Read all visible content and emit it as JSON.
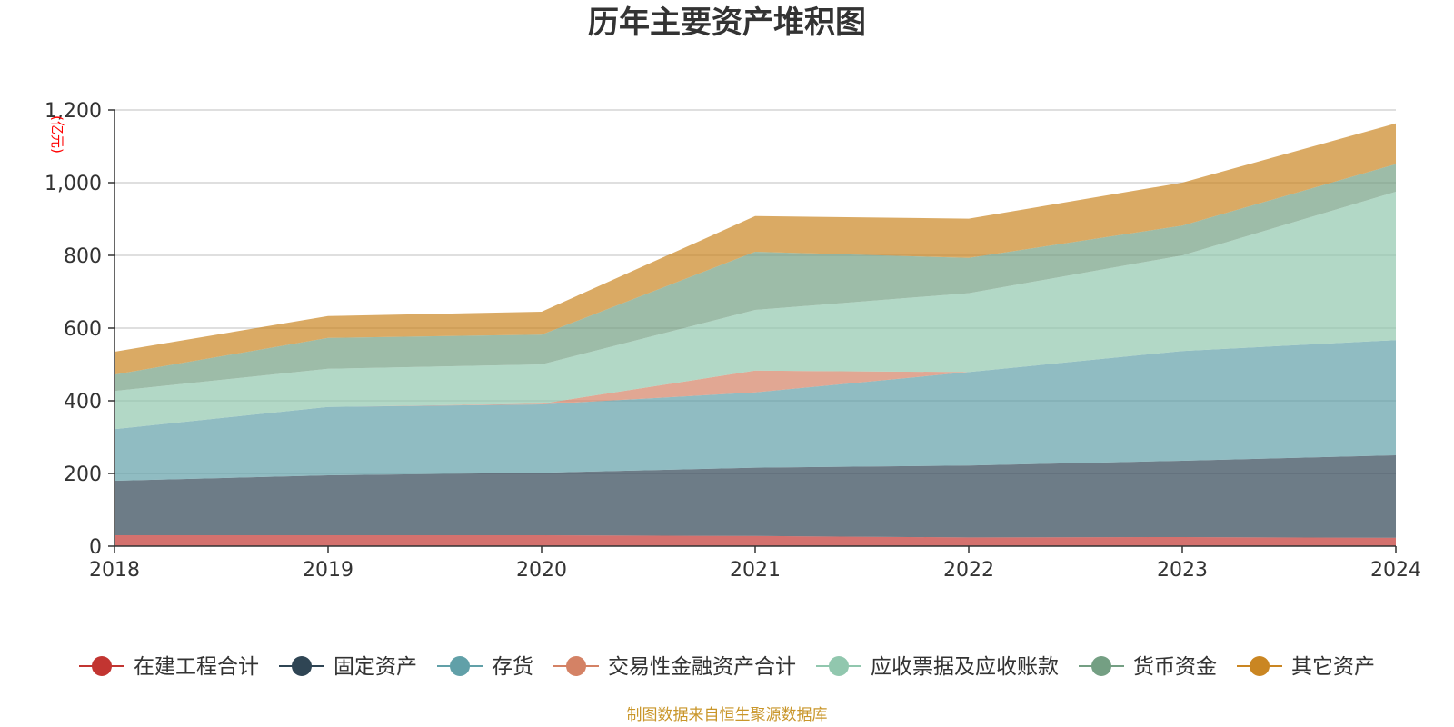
{
  "chart_data": {
    "type": "area",
    "stacked": true,
    "title": "历年主要资产堆积图",
    "unit": "(亿元)",
    "source": "制图数据来自恒生聚源数据库",
    "x": [
      "2018",
      "2019",
      "2020",
      "2021",
      "2022",
      "2023",
      "2024"
    ],
    "ylim": [
      0,
      1200
    ],
    "yticks": [
      0,
      200,
      400,
      600,
      800,
      1000,
      1200
    ],
    "ytick_labels": [
      "0",
      "200",
      "400",
      "600",
      "800",
      "1,000",
      "1,200"
    ],
    "grid": true,
    "legend_position": "bottom",
    "series": [
      {
        "name": "在建工程合计",
        "color": "#c23531",
        "values": [
          30,
          30,
          30,
          28,
          24,
          25,
          23
        ]
      },
      {
        "name": "固定资产",
        "color": "#2f4554",
        "values": [
          150,
          165,
          172,
          188,
          198,
          210,
          227
        ]
      },
      {
        "name": "存货",
        "color": "#61a0a8",
        "values": [
          142,
          188,
          188,
          207,
          257,
          302,
          317
        ]
      },
      {
        "name": "交易性金融资产合计",
        "color": "#d48265",
        "values": [
          0,
          0,
          2,
          60,
          0,
          0,
          0
        ]
      },
      {
        "name": "应收票据及应收账款",
        "color": "#91c7ae",
        "values": [
          105,
          105,
          108,
          167,
          217,
          263,
          408
        ]
      },
      {
        "name": "货币资金",
        "color": "#749f83",
        "values": [
          45,
          85,
          82,
          160,
          97,
          82,
          76
        ]
      },
      {
        "name": "其它资产",
        "color": "#ca8622",
        "values": [
          63,
          60,
          63,
          98,
          108,
          118,
          112
        ]
      }
    ]
  }
}
